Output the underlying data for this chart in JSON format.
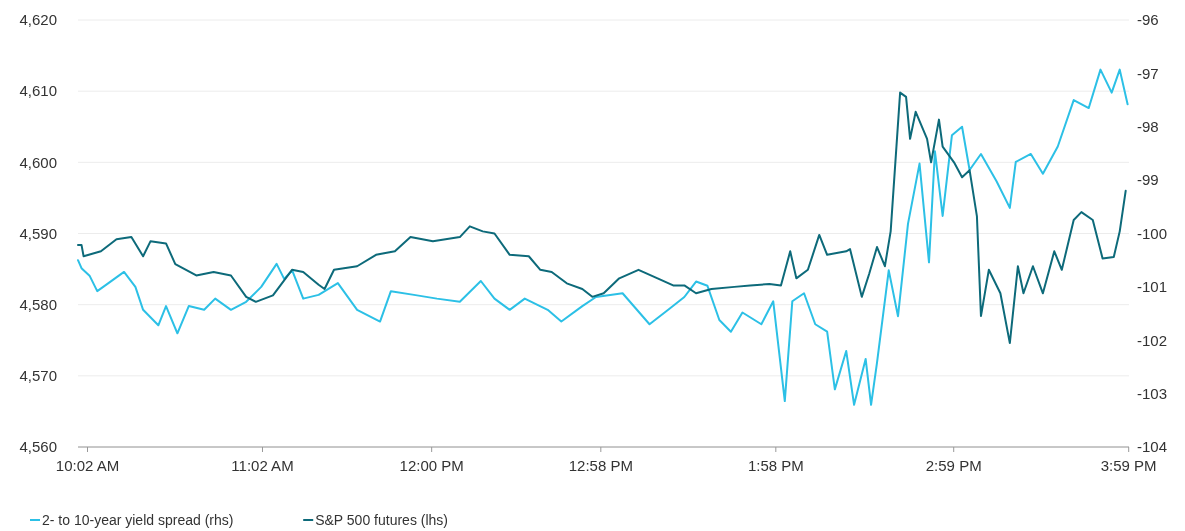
{
  "chart_data": {
    "type": "line",
    "xlim": [
      9.979,
      15.985
    ],
    "xticks": [
      {
        "value": 10.0333,
        "label": "10:02 AM"
      },
      {
        "value": 11.0333,
        "label": "11:02 AM"
      },
      {
        "value": 12.0,
        "label": "12:00 PM"
      },
      {
        "value": 12.9667,
        "label": "12:58 PM"
      },
      {
        "value": 13.9667,
        "label": "1:58 PM"
      },
      {
        "value": 14.9833,
        "label": "2:59 PM"
      },
      {
        "value": 15.9833,
        "label": "3:59 PM"
      }
    ],
    "ylim": [
      4560,
      4620
    ],
    "yticks": [
      {
        "value": 4560,
        "label": "4,560"
      },
      {
        "value": 4570,
        "label": "4,570"
      },
      {
        "value": 4580,
        "label": "4,580"
      },
      {
        "value": 4590,
        "label": "4,590"
      },
      {
        "value": 4600,
        "label": "4,600"
      },
      {
        "value": 4610,
        "label": "4,610"
      },
      {
        "value": 4620,
        "label": "4,620"
      }
    ],
    "y2lim": [
      -104,
      -96
    ],
    "y2ticks": [
      -104,
      -103,
      -102,
      -101,
      -100,
      -99,
      -98,
      -97,
      -96
    ],
    "grid": "y",
    "legend": "bottom left",
    "series": [
      {
        "name": "2- to 10-year yield spread (rhs)",
        "color": "#2cc0e6",
        "axis": "y2",
        "x": [
          9.979,
          9.999,
          10.045,
          10.089,
          10.153,
          10.242,
          10.307,
          10.351,
          10.438,
          10.482,
          10.547,
          10.612,
          10.7,
          10.763,
          10.853,
          10.94,
          11.026,
          11.114,
          11.157,
          11.203,
          11.266,
          11.354,
          11.464,
          11.574,
          11.705,
          11.767,
          11.899,
          12.03,
          12.161,
          12.281,
          12.359,
          12.446,
          12.532,
          12.663,
          12.741,
          12.861,
          12.939,
          13.091,
          13.245,
          13.359,
          13.444,
          13.511,
          13.576,
          13.644,
          13.71,
          13.776,
          13.884,
          13.952,
          14.018,
          14.061,
          14.128,
          14.192,
          14.26,
          14.304,
          14.369,
          14.414,
          14.48,
          14.511,
          14.545,
          14.612,
          14.665,
          14.722,
          14.788,
          14.842,
          14.876,
          14.92,
          14.973,
          15.031,
          15.074,
          15.139,
          15.228,
          15.304,
          15.338,
          15.424,
          15.493,
          15.578,
          15.669,
          15.755,
          15.822,
          15.886,
          15.932,
          15.977
        ],
        "values": [
          -100.5,
          -100.65,
          -100.79,
          -101.08,
          -100.93,
          -100.72,
          -101.0,
          -101.43,
          -101.72,
          -101.36,
          -101.87,
          -101.36,
          -101.43,
          -101.22,
          -101.43,
          -101.28,
          -101.0,
          -100.57,
          -100.85,
          -100.69,
          -101.22,
          -101.15,
          -100.93,
          -101.43,
          -101.65,
          -101.08,
          -101.15,
          -101.22,
          -101.28,
          -100.89,
          -101.22,
          -101.43,
          -101.22,
          -101.43,
          -101.65,
          -101.36,
          -101.19,
          -101.12,
          -101.7,
          -101.41,
          -101.19,
          -100.9,
          -100.98,
          -101.62,
          -101.84,
          -101.48,
          -101.7,
          -101.27,
          -103.14,
          -101.27,
          -101.12,
          -101.7,
          -101.84,
          -102.92,
          -102.2,
          -103.21,
          -102.35,
          -103.21,
          -102.42,
          -100.69,
          -101.55,
          -99.82,
          -98.69,
          -100.54,
          -98.46,
          -99.67,
          -98.16,
          -98.0,
          -98.81,
          -98.51,
          -99.02,
          -99.52,
          -98.66,
          -98.51,
          -98.88,
          -98.37,
          -97.5,
          -97.65,
          -96.93,
          -97.36,
          -96.93,
          -97.58
        ]
      },
      {
        "name": "S&P 500 futures (lhs)",
        "color": "#0d6a7a",
        "x": [
          9.979,
          9.999,
          10.011,
          10.11,
          10.199,
          10.284,
          10.351,
          10.393,
          10.482,
          10.535,
          10.655,
          10.754,
          10.853,
          10.94,
          10.995,
          11.093,
          11.202,
          11.266,
          11.354,
          11.388,
          11.442,
          11.574,
          11.682,
          11.79,
          11.879,
          12.007,
          12.161,
          12.218,
          12.292,
          12.359,
          12.446,
          12.555,
          12.621,
          12.686,
          12.772,
          12.861,
          12.918,
          12.983,
          13.072,
          13.182,
          13.291,
          13.38,
          13.444,
          13.511,
          13.599,
          13.73,
          13.82,
          13.93,
          13.996,
          14.049,
          14.084,
          14.15,
          14.215,
          14.26,
          14.369,
          14.391,
          14.458,
          14.5,
          14.545,
          14.59,
          14.623,
          14.677,
          14.711,
          14.734,
          14.766,
          14.831,
          14.854,
          14.899,
          14.92,
          14.985,
          15.031,
          15.074,
          15.116,
          15.139,
          15.184,
          15.25,
          15.304,
          15.35,
          15.382,
          15.436,
          15.493,
          15.558,
          15.601,
          15.669,
          15.713,
          15.778,
          15.834,
          15.898,
          15.932,
          15.966
        ],
        "values": [
          4588.4,
          4588.4,
          4586.8,
          4587.5,
          4589.2,
          4589.5,
          4586.8,
          4588.9,
          4588.6,
          4585.7,
          4584.1,
          4584.6,
          4584.1,
          4581.1,
          4580.4,
          4581.3,
          4584.9,
          4584.6,
          4582.8,
          4582.2,
          4584.9,
          4585.4,
          4587.0,
          4587.5,
          4589.5,
          4588.9,
          4589.5,
          4591.0,
          4590.3,
          4590.0,
          4587.0,
          4586.8,
          4584.9,
          4584.6,
          4583.0,
          4582.2,
          4581.1,
          4581.6,
          4583.7,
          4584.9,
          4583.7,
          4582.7,
          4582.7,
          4581.6,
          4582.2,
          4582.5,
          4582.7,
          4582.9,
          4582.7,
          4587.5,
          4583.7,
          4584.9,
          4589.8,
          4587.0,
          4587.5,
          4587.8,
          4581.1,
          4584.3,
          4588.1,
          4585.4,
          4590.3,
          4609.8,
          4609.2,
          4603.3,
          4607.1,
          4603.3,
          4600.0,
          4606.0,
          4602.2,
          4600.0,
          4597.9,
          4598.9,
          4592.4,
          4578.4,
          4584.9,
          4581.6,
          4574.6,
          4585.4,
          4581.6,
          4585.4,
          4581.6,
          4587.5,
          4584.9,
          4591.9,
          4593.0,
          4591.9,
          4586.5,
          4586.7,
          4590.3,
          4596.0
        ]
      }
    ]
  }
}
